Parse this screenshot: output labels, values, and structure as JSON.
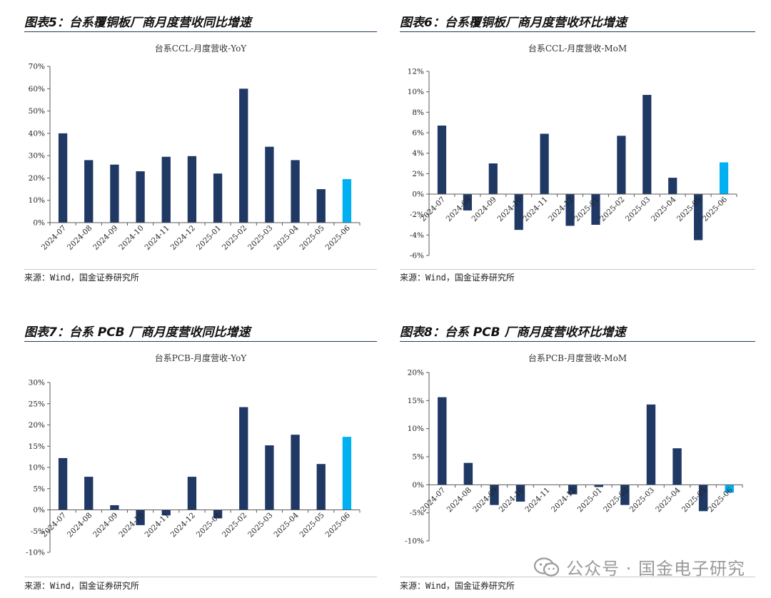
{
  "source_text": "来源：Wind，国金证券研究所",
  "watermark": {
    "icon": "wechat-icon",
    "text": "公众号 · 国金电子研究"
  },
  "colors": {
    "bar": "#1f3864",
    "highlight": "#00b0f0",
    "axis": "#595959",
    "rule": "#1f3a5f"
  },
  "figures": [
    {
      "label": "图表5：台系覆铜板厂商月度营收同比增速",
      "chart_title": "台系CCL-月度营收-YoY"
    },
    {
      "label": "图表6：台系覆铜板厂商月度营收环比增速",
      "chart_title": "台系CCL-月度营收-MoM"
    },
    {
      "label": "图表7：台系 PCB 厂商月度营收同比增速",
      "chart_title": "台系PCB-月度营收-YoY"
    },
    {
      "label": "图表8：台系 PCB 厂商月度营收环比增速",
      "chart_title": "台系PCB-月度营收-MoM"
    }
  ],
  "chart_data": [
    {
      "type": "bar",
      "title": "台系CCL-月度营收-YoY",
      "categories": [
        "2024-07",
        "2024-08",
        "2024-09",
        "2024-10",
        "2024-11",
        "2024-12",
        "2025-01",
        "2025-02",
        "2025-03",
        "2025-04",
        "2025-05",
        "2025-06"
      ],
      "values": [
        40,
        28,
        26,
        23,
        29.5,
        29.8,
        22,
        60,
        34,
        28,
        15,
        19.5
      ],
      "ylim": [
        0,
        70
      ],
      "yticks": [
        0,
        10,
        20,
        30,
        40,
        50,
        60,
        70
      ],
      "ytick_labels": [
        "0%",
        "10%",
        "20%",
        "30%",
        "40%",
        "50%",
        "60%",
        "70%"
      ],
      "highlight_index": 11,
      "grid": false,
      "xlabel": "",
      "ylabel": ""
    },
    {
      "type": "bar",
      "title": "台系CCL-月度营收-MoM",
      "categories": [
        "2024-07",
        "2024-08",
        "2024-09",
        "2024-10",
        "2024-11",
        "2024-12",
        "2025-01",
        "2025-02",
        "2025-03",
        "2025-04",
        "2025-05",
        "2025-06"
      ],
      "values": [
        6.7,
        -1.6,
        3.0,
        -3.5,
        5.9,
        -3.1,
        -3.0,
        5.7,
        9.7,
        1.6,
        -4.5,
        3.1
      ],
      "ylim": [
        -6,
        12
      ],
      "yticks": [
        -6,
        -4,
        -2,
        0,
        2,
        4,
        6,
        8,
        10,
        12
      ],
      "ytick_labels": [
        "-6%",
        "-4%",
        "-2%",
        "0%",
        "2%",
        "4%",
        "6%",
        "8%",
        "10%",
        "12%"
      ],
      "highlight_index": 11,
      "grid": false,
      "xlabel": "",
      "ylabel": ""
    },
    {
      "type": "bar",
      "title": "台系PCB-月度营收-YoY",
      "categories": [
        "2024-07",
        "2024-08",
        "2024-09",
        "2024-10",
        "2024-11",
        "2024-12",
        "2025-01",
        "2025-02",
        "2025-03",
        "2025-04",
        "2025-05",
        "2025-06"
      ],
      "values": [
        12.2,
        7.8,
        1.1,
        -3.6,
        -1.3,
        7.8,
        -2.0,
        24.2,
        15.2,
        17.7,
        10.8,
        17.2
      ],
      "ylim": [
        -10,
        30
      ],
      "yticks": [
        -10,
        -5,
        0,
        5,
        10,
        15,
        20,
        25,
        30
      ],
      "ytick_labels": [
        "-10%",
        "-5%",
        "0%",
        "5%",
        "10%",
        "15%",
        "20%",
        "25%",
        "30%"
      ],
      "highlight_index": 11,
      "grid": false,
      "xlabel": "",
      "ylabel": ""
    },
    {
      "type": "bar",
      "title": "台系PCB-月度营收-MoM",
      "categories": [
        "2024-07",
        "2024-08",
        "2024-09",
        "2024-10",
        "2024-11",
        "2024-12",
        "2025-01",
        "2025-02",
        "2025-03",
        "2025-04",
        "2025-05",
        "2025-06"
      ],
      "values": [
        15.6,
        3.9,
        -3.6,
        -3.0,
        0,
        -1.7,
        -0.4,
        -3.6,
        14.3,
        6.5,
        -4.7,
        -1.4
      ],
      "ylim": [
        -10,
        20
      ],
      "yticks": [
        -10,
        -5,
        0,
        5,
        10,
        15,
        20
      ],
      "ytick_labels": [
        "-10%",
        "-5%",
        "0%",
        "5%",
        "10%",
        "15%",
        "20%"
      ],
      "highlight_index": 11,
      "grid": false,
      "xlabel": "",
      "ylabel": ""
    }
  ]
}
